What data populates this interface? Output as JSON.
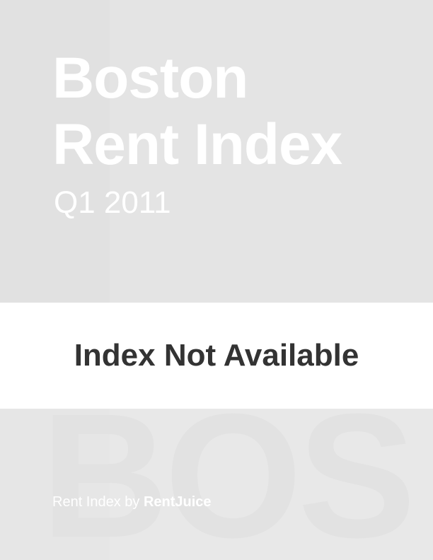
{
  "cover": {
    "title_line1": "Boston",
    "title_line2": "Rent Index",
    "period": "Q1 2011"
  },
  "notice": {
    "text": "Index Not Available"
  },
  "watermark": {
    "text": "BOS"
  },
  "footer": {
    "prefix": "Rent Index by ",
    "brand": "RentJuice"
  },
  "colors": {
    "background": "#e4e4e4",
    "band": "#ffffff",
    "title_text": "#ffffff",
    "notice_text": "#333333"
  }
}
